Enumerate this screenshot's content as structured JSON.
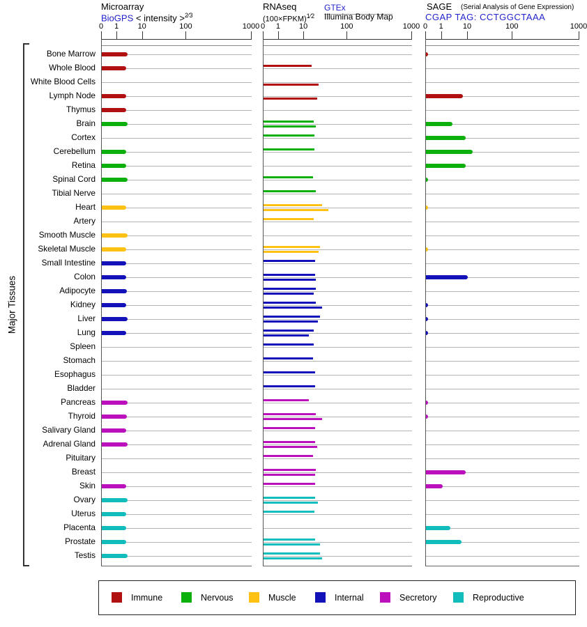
{
  "side_label": "Major Tissues",
  "panels": {
    "microarray": {
      "title": "Microarray",
      "link": "BioGPS",
      "subtitle": "< intensity >",
      "exponent": "2⁄3",
      "axis_ticks": [
        "0",
        "1",
        "10",
        "100",
        "1000"
      ]
    },
    "rnaseq": {
      "title": "RNAseq",
      "subtitle": "(100×FPKM)",
      "exponent": "1⁄2",
      "link": "GTEx",
      "source2": "Illumina Body Map",
      "axis_ticks": [
        "0",
        "1",
        "10",
        "100",
        "1000"
      ]
    },
    "sage": {
      "title": "SAGE",
      "subtitle": "(Serial Analysis of Gene Expression)",
      "tag_line": "CGAP TAG: CCTGGCTAAA",
      "axis_ticks": [
        "0",
        "1",
        "10",
        "100",
        "1000"
      ]
    }
  },
  "category_colors": {
    "Immune": "#b01010",
    "Nervous": "#0cb00c",
    "Muscle": "#fcc112",
    "Internal": "#1212b8",
    "Secretory": "#bb10bb",
    "Reproductive": "#10bcbc"
  },
  "legend": [
    {
      "label": "Immune",
      "color": "#b01010"
    },
    {
      "label": "Nervous",
      "color": "#0cb00c"
    },
    {
      "label": "Muscle",
      "color": "#fcc112"
    },
    {
      "label": "Internal",
      "color": "#1212b8"
    },
    {
      "label": "Secretory",
      "color": "#bb10bb"
    },
    {
      "label": "Reproductive",
      "color": "#10bcbc"
    }
  ],
  "chart_data": {
    "type": "bar",
    "orientation": "horizontal",
    "axis_scale": "power transform, ticks 0 / 1 / 10 / 100 / 1000",
    "panels": [
      "Microarray (BioGPS)",
      "RNAseq GTEx (thin upper bar)",
      "RNAseq Illumina Body Map (thin lower bar)",
      "SAGE (CGAP TAG: CCTGGCTAAA)"
    ],
    "rows": [
      {
        "tissue": "Bone Marrow",
        "category": "Immune",
        "microarray": 2.5,
        "rnaseq_gtex": null,
        "rnaseq_illumina": null,
        "sage": 0.1
      },
      {
        "tissue": "Whole Blood",
        "category": "Immune",
        "microarray": 2.3,
        "rnaseq_gtex": 15,
        "rnaseq_illumina": null,
        "sage": null
      },
      {
        "tissue": "White Blood Cells",
        "category": "Immune",
        "microarray": null,
        "rnaseq_gtex": null,
        "rnaseq_illumina": 22,
        "sage": null
      },
      {
        "tissue": "Lymph Node",
        "category": "Immune",
        "microarray": 2.3,
        "rnaseq_gtex": null,
        "rnaseq_illumina": 20,
        "sage": 6.5
      },
      {
        "tissue": "Thymus",
        "category": "Immune",
        "microarray": 2.3,
        "rnaseq_gtex": null,
        "rnaseq_illumina": null,
        "sage": null
      },
      {
        "tissue": "Brain",
        "category": "Nervous",
        "microarray": 2.5,
        "rnaseq_gtex": 16.5,
        "rnaseq_illumina": 18.5,
        "sage": 2.6
      },
      {
        "tissue": "Cortex",
        "category": "Nervous",
        "microarray": null,
        "rnaseq_gtex": 17.5,
        "rnaseq_illumina": null,
        "sage": 8.3
      },
      {
        "tissue": "Cerebellum",
        "category": "Nervous",
        "microarray": 2.3,
        "rnaseq_gtex": 17.5,
        "rnaseq_illumina": null,
        "sage": 13
      },
      {
        "tissue": "Retina",
        "category": "Nervous",
        "microarray": 2.3,
        "rnaseq_gtex": null,
        "rnaseq_illumina": null,
        "sage": 8.3
      },
      {
        "tissue": "Spinal Cord",
        "category": "Nervous",
        "microarray": 2.5,
        "rnaseq_gtex": 16,
        "rnaseq_illumina": null,
        "sage": 0.1
      },
      {
        "tissue": "Tibial Nerve",
        "category": "Nervous",
        "microarray": null,
        "rnaseq_gtex": 18.5,
        "rnaseq_illumina": null,
        "sage": null
      },
      {
        "tissue": "Heart",
        "category": "Muscle",
        "microarray": 2.3,
        "rnaseq_gtex": 26,
        "rnaseq_illumina": 36,
        "sage": 0.1
      },
      {
        "tissue": "Artery",
        "category": "Muscle",
        "microarray": null,
        "rnaseq_gtex": 16.5,
        "rnaseq_illumina": null,
        "sage": null
      },
      {
        "tissue": "Smooth Muscle",
        "category": "Muscle",
        "microarray": 2.5,
        "rnaseq_gtex": null,
        "rnaseq_illumina": null,
        "sage": null
      },
      {
        "tissue": "Skeletal Muscle",
        "category": "Muscle",
        "microarray": 2.3,
        "rnaseq_gtex": 23,
        "rnaseq_illumina": 22,
        "sage": 0.1
      },
      {
        "tissue": "Small Intestine",
        "category": "Internal",
        "microarray": 2.3,
        "rnaseq_gtex": 18,
        "rnaseq_illumina": null,
        "sage": null
      },
      {
        "tissue": "Colon",
        "category": "Internal",
        "microarray": 2.2,
        "rnaseq_gtex": 18,
        "rnaseq_illumina": 18.5,
        "sage": 10
      },
      {
        "tissue": "Adipocyte",
        "category": "Internal",
        "microarray": 2.4,
        "rnaseq_gtex": 18.5,
        "rnaseq_illumina": 16.5,
        "sage": null
      },
      {
        "tissue": "Kidney",
        "category": "Internal",
        "microarray": 2.3,
        "rnaseq_gtex": 19,
        "rnaseq_illumina": 26,
        "sage": 0.1
      },
      {
        "tissue": "Liver",
        "category": "Internal",
        "microarray": 2.5,
        "rnaseq_gtex": 23,
        "rnaseq_illumina": 21,
        "sage": 0.1
      },
      {
        "tissue": "Lung",
        "category": "Internal",
        "microarray": 2.3,
        "rnaseq_gtex": 16.5,
        "rnaseq_illumina": 13,
        "sage": 0.1
      },
      {
        "tissue": "Spleen",
        "category": "Internal",
        "microarray": null,
        "rnaseq_gtex": 16.5,
        "rnaseq_illumina": null,
        "sage": null
      },
      {
        "tissue": "Stomach",
        "category": "Internal",
        "microarray": null,
        "rnaseq_gtex": 16,
        "rnaseq_illumina": null,
        "sage": null
      },
      {
        "tissue": "Esophagus",
        "category": "Internal",
        "microarray": null,
        "rnaseq_gtex": 18,
        "rnaseq_illumina": null,
        "sage": null
      },
      {
        "tissue": "Bladder",
        "category": "Internal",
        "microarray": null,
        "rnaseq_gtex": 18,
        "rnaseq_illumina": null,
        "sage": null
      },
      {
        "tissue": "Pancreas",
        "category": "Secretory",
        "microarray": 2.5,
        "rnaseq_gtex": 13,
        "rnaseq_illumina": null,
        "sage": 0.1
      },
      {
        "tissue": "Thyroid",
        "category": "Secretory",
        "microarray": 2.4,
        "rnaseq_gtex": 19,
        "rnaseq_illumina": 26,
        "sage": 0.1
      },
      {
        "tissue": "Salivary Gland",
        "category": "Secretory",
        "microarray": 2.3,
        "rnaseq_gtex": 18,
        "rnaseq_illumina": null,
        "sage": null
      },
      {
        "tissue": "Adrenal Gland",
        "category": "Secretory",
        "microarray": 2.5,
        "rnaseq_gtex": 18,
        "rnaseq_illumina": 20,
        "sage": null
      },
      {
        "tissue": "Pituitary",
        "category": "Secretory",
        "microarray": null,
        "rnaseq_gtex": 16,
        "rnaseq_illumina": null,
        "sage": null
      },
      {
        "tissue": "Breast",
        "category": "Secretory",
        "microarray": null,
        "rnaseq_gtex": 18.5,
        "rnaseq_illumina": 18,
        "sage": 8.3
      },
      {
        "tissue": "Skin",
        "category": "Secretory",
        "microarray": 2.3,
        "rnaseq_gtex": 18,
        "rnaseq_illumina": null,
        "sage": 1.1
      },
      {
        "tissue": "Ovary",
        "category": "Reproductive",
        "microarray": 2.5,
        "rnaseq_gtex": 18,
        "rnaseq_illumina": 21,
        "sage": null
      },
      {
        "tissue": "Uterus",
        "category": "Reproductive",
        "microarray": 2.3,
        "rnaseq_gtex": 17.5,
        "rnaseq_illumina": null,
        "sage": null
      },
      {
        "tissue": "Placenta",
        "category": "Reproductive",
        "microarray": 2.3,
        "rnaseq_gtex": null,
        "rnaseq_illumina": null,
        "sage": 2.1
      },
      {
        "tissue": "Prostate",
        "category": "Reproductive",
        "microarray": 2.3,
        "rnaseq_gtex": 18,
        "rnaseq_illumina": 23,
        "sage": 5.7
      },
      {
        "tissue": "Testis",
        "category": "Reproductive",
        "microarray": 2.5,
        "rnaseq_gtex": 23,
        "rnaseq_illumina": 26,
        "sage": null
      }
    ]
  }
}
